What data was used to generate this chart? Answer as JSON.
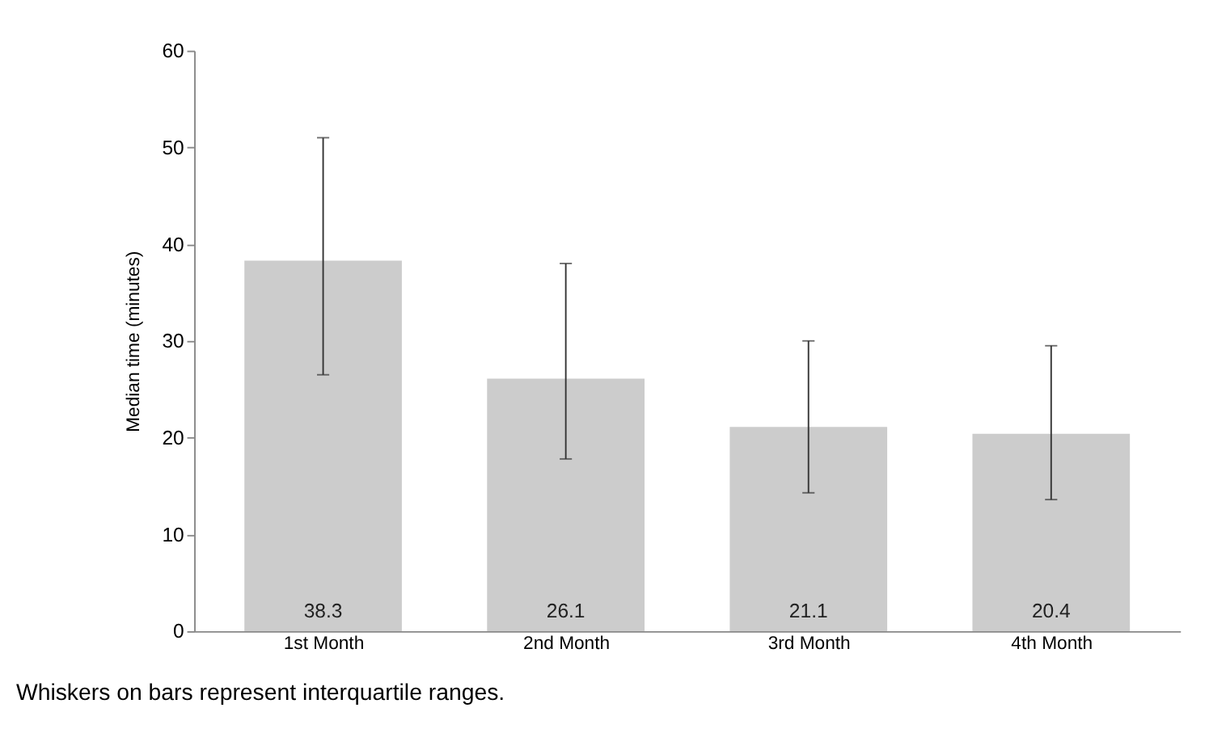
{
  "chart_data": {
    "type": "bar",
    "ylabel": "Median time (minutes)",
    "categories": [
      "1st Month",
      "2nd Month",
      "3rd Month",
      "4th Month"
    ],
    "values": [
      38.3,
      26.1,
      21.1,
      20.4
    ],
    "errors": [
      [
        26.5,
        51
      ],
      [
        17.8,
        38
      ],
      [
        14.3,
        30
      ],
      [
        13.6,
        29.5
      ]
    ],
    "color": "#cccccc",
    "data_labels": true,
    "ylim": [
      0,
      60
    ],
    "yticks": [
      0,
      10,
      20,
      30,
      40,
      50,
      60
    ],
    "grid": false,
    "annotations": [
      "Whiskers on bars represent interquartile ranges."
    ]
  }
}
